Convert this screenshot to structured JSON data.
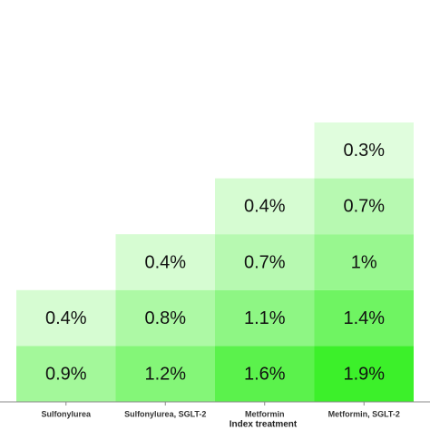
{
  "chart_data": {
    "type": "heatmap",
    "xlabel": "Index treatment",
    "categories": [
      "Sulfonylurea",
      "Sulfonylurea, SGLT-2",
      "Metformin",
      "Metformin, SGLT-2"
    ],
    "values": [
      [
        null,
        null,
        null,
        0.3
      ],
      [
        null,
        null,
        0.4,
        0.7
      ],
      [
        null,
        0.4,
        0.7,
        1
      ],
      [
        0.4,
        0.8,
        1.1,
        1.4
      ],
      [
        0.9,
        1.2,
        1.6,
        1.9
      ]
    ],
    "value_labels": [
      [
        null,
        null,
        null,
        "0.3%"
      ],
      [
        null,
        null,
        "0.4%",
        "0.7%"
      ],
      [
        null,
        "0.4%",
        "0.7%",
        "1%"
      ],
      [
        "0.4%",
        "0.8%",
        "1.1%",
        "1.4%"
      ],
      [
        "0.9%",
        "1.2%",
        "1.6%",
        "1.9%"
      ]
    ],
    "colormap": [
      "#ffffff",
      "#3cf02a"
    ]
  }
}
